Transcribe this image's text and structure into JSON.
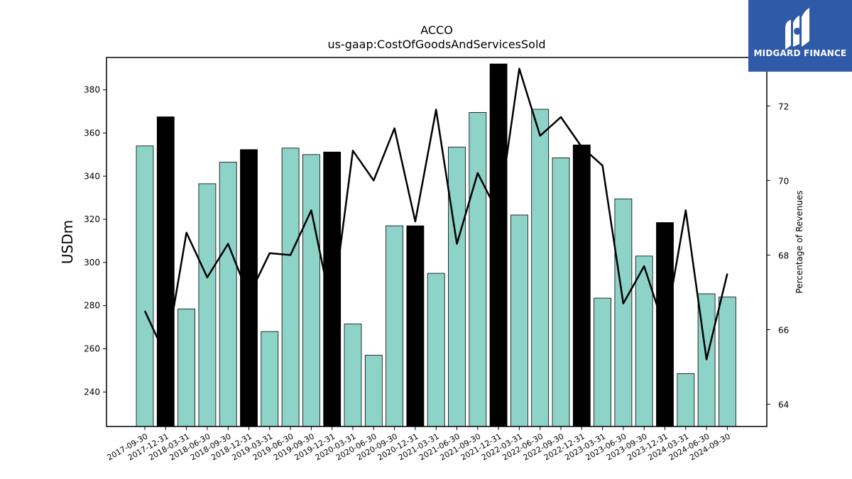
{
  "title_line1": "ACCO",
  "title_line2": "us-gaap:CostOfGoodsAndServicesSold",
  "logo": {
    "text": "MIDGARD FINANCE",
    "icon": "midgard-logo-icon",
    "color": "#2f5aa8"
  },
  "chart_data": {
    "type": "bar",
    "categories": [
      "2017-09-30",
      "2017-12-31",
      "2018-03-31",
      "2018-06-30",
      "2018-09-30",
      "2018-12-31",
      "2019-03-31",
      "2019-06-30",
      "2019-09-30",
      "2019-12-31",
      "2020-03-31",
      "2020-06-30",
      "2020-09-30",
      "2020-12-31",
      "2021-03-31",
      "2021-06-30",
      "2021-09-30",
      "2021-12-31",
      "2022-03-31",
      "2022-06-30",
      "2022-09-30",
      "2022-12-31",
      "2023-03-31",
      "2023-06-30",
      "2023-09-30",
      "2023-12-31",
      "2024-03-31",
      "2024-06-30",
      "2024-09-30"
    ],
    "series": [
      {
        "axis": "left",
        "kind": "bar",
        "values": [
          354,
          367.5,
          278.5,
          336.5,
          346.5,
          352.3,
          268,
          353,
          350,
          351.2,
          271.5,
          257,
          317,
          317,
          295,
          353.5,
          369.5,
          392,
          322,
          371,
          348.5,
          354.5,
          283.5,
          329.5,
          303,
          318.5,
          248.5,
          285.5,
          284
        ],
        "highlight_categories": [
          "2017-12-31",
          "2018-12-31",
          "2019-12-31",
          "2020-12-31",
          "2021-12-31",
          "2022-12-31",
          "2023-12-31"
        ],
        "color": "#8dd3c7",
        "highlight_color": "#000000"
      },
      {
        "axis": "right",
        "kind": "line",
        "values": [
          66.5,
          65.3,
          68.6,
          67.4,
          68.3,
          66.9,
          68.05,
          68.0,
          69.2,
          66.5,
          70.8,
          70.0,
          71.4,
          68.9,
          71.9,
          68.3,
          70.2,
          69.1,
          73.0,
          71.2,
          71.7,
          70.9,
          70.4,
          66.7,
          67.7,
          66.0,
          69.2,
          65.2,
          67.5
        ],
        "color": "#000000"
      }
    ],
    "ylabel": "USDm",
    "ylabel_right": "Percentage of Revenues",
    "ylim": [
      224,
      395
    ],
    "ylim_right": [
      63.4,
      73.3
    ],
    "yticks": [
      240,
      260,
      280,
      300,
      320,
      340,
      360,
      380
    ],
    "yticks_right": [
      64,
      66,
      68,
      70,
      72
    ],
    "grid": false
  }
}
